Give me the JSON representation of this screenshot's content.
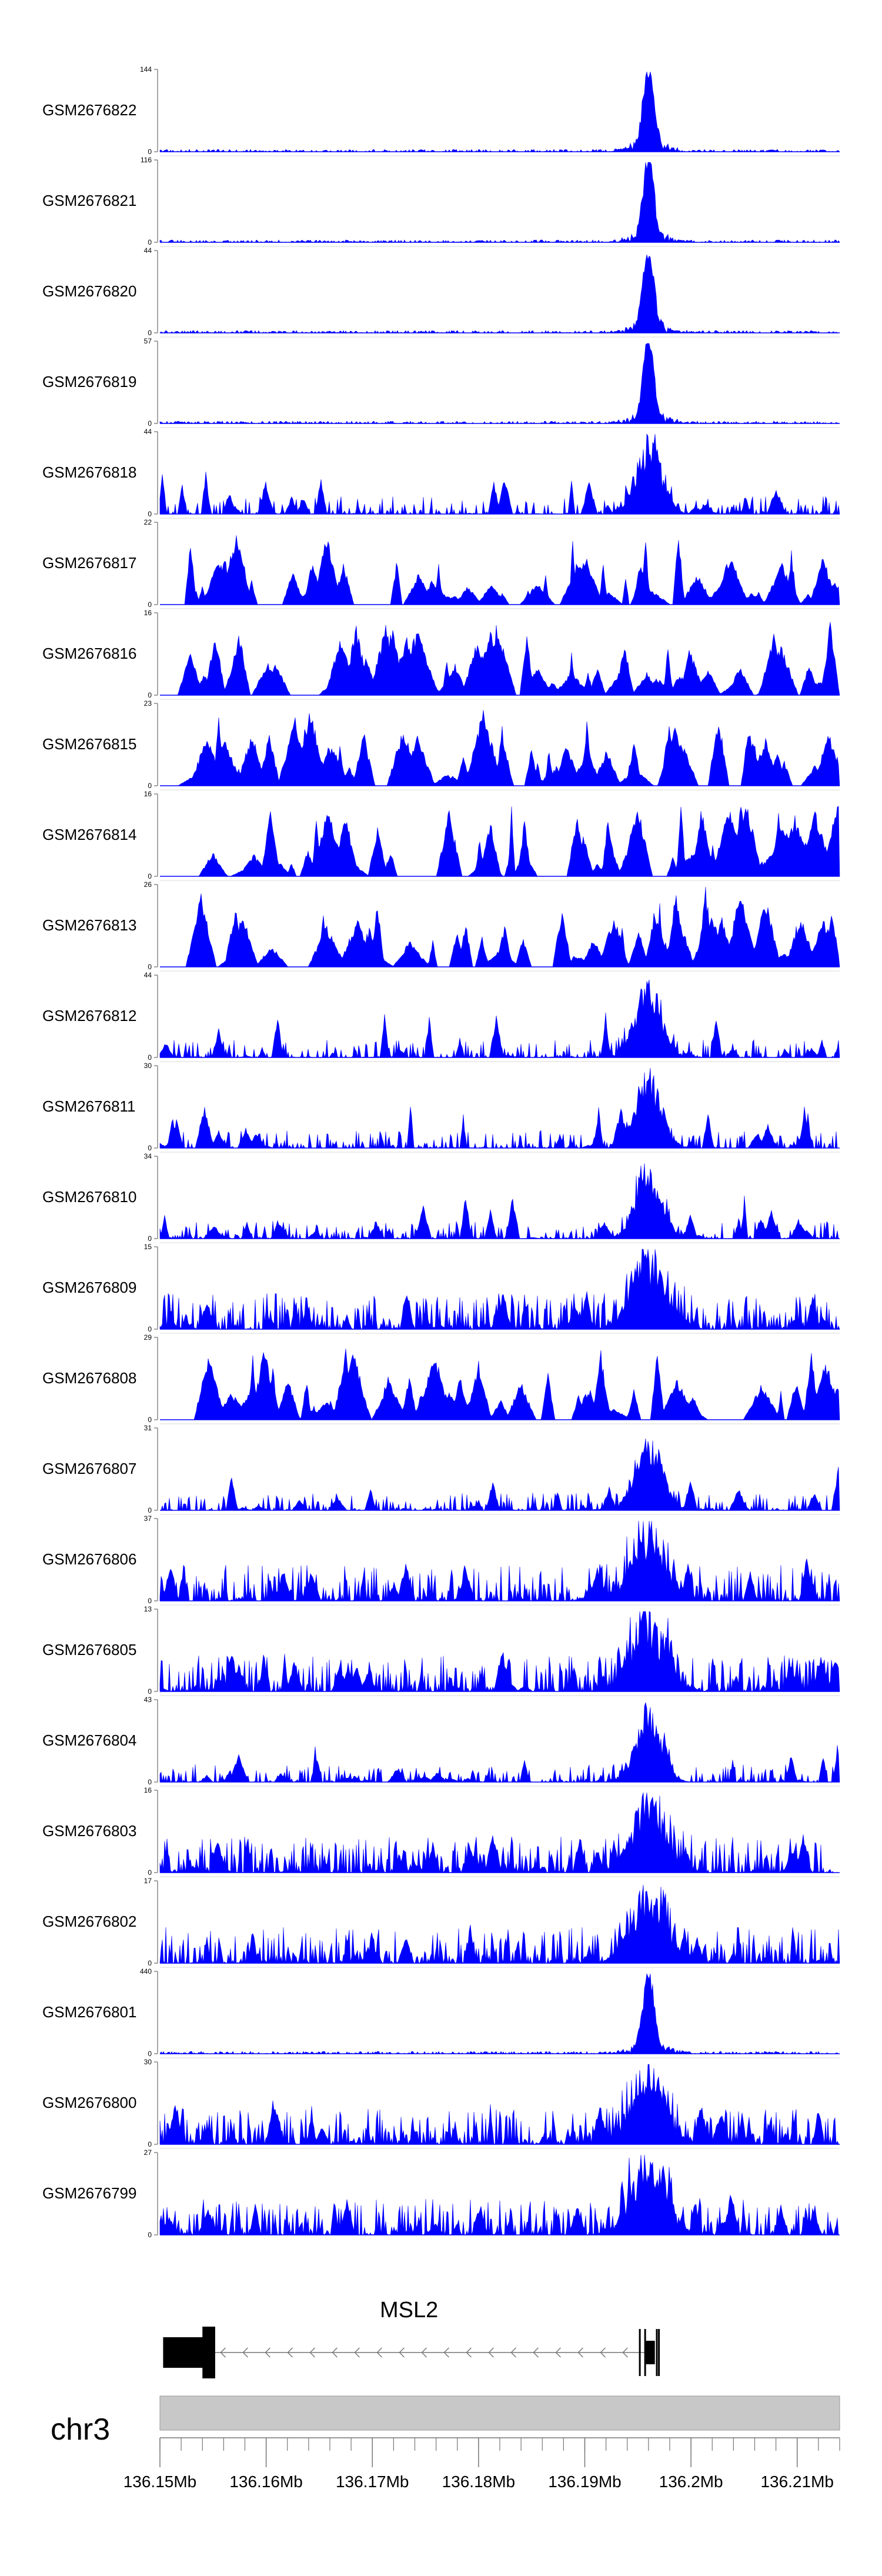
{
  "chart_data": {
    "type": "area",
    "region": {
      "chromosome": "chr3",
      "start_mb": 136.15,
      "end_mb": 136.214
    },
    "series_color": "#0000ff",
    "tracks": [
      {
        "name": "GSM2676822",
        "ymax": 144,
        "ymin": 0,
        "profile": "peak"
      },
      {
        "name": "GSM2676821",
        "ymax": 116,
        "ymin": 0,
        "profile": "peak"
      },
      {
        "name": "GSM2676820",
        "ymax": 44,
        "ymin": 0,
        "profile": "peak"
      },
      {
        "name": "GSM2676819",
        "ymax": 57,
        "ymin": 0,
        "profile": "peak"
      },
      {
        "name": "GSM2676818",
        "ymax": 44,
        "ymin": 0,
        "profile": "mixed"
      },
      {
        "name": "GSM2676817",
        "ymax": 22,
        "ymin": 0,
        "profile": "sparse"
      },
      {
        "name": "GSM2676816",
        "ymax": 16,
        "ymin": 0,
        "profile": "sparse"
      },
      {
        "name": "GSM2676815",
        "ymax": 23,
        "ymin": 0,
        "profile": "sparse"
      },
      {
        "name": "GSM2676814",
        "ymax": 16,
        "ymin": 0,
        "profile": "sparse"
      },
      {
        "name": "GSM2676813",
        "ymax": 26,
        "ymin": 0,
        "profile": "sparse"
      },
      {
        "name": "GSM2676812",
        "ymax": 44,
        "ymin": 0,
        "profile": "mixed"
      },
      {
        "name": "GSM2676811",
        "ymax": 30,
        "ymin": 0,
        "profile": "mixed"
      },
      {
        "name": "GSM2676810",
        "ymax": 34,
        "ymin": 0,
        "profile": "mixed"
      },
      {
        "name": "GSM2676809",
        "ymax": 15,
        "ymin": 0,
        "profile": "dense"
      },
      {
        "name": "GSM2676808",
        "ymax": 29,
        "ymin": 0,
        "profile": "sparse"
      },
      {
        "name": "GSM2676807",
        "ymax": 31,
        "ymin": 0,
        "profile": "mixed"
      },
      {
        "name": "GSM2676806",
        "ymax": 37,
        "ymin": 0,
        "profile": "dense"
      },
      {
        "name": "GSM2676805",
        "ymax": 13,
        "ymin": 0,
        "profile": "dense"
      },
      {
        "name": "GSM2676804",
        "ymax": 43,
        "ymin": 0,
        "profile": "mixed"
      },
      {
        "name": "GSM2676803",
        "ymax": 16,
        "ymin": 0,
        "profile": "dense"
      },
      {
        "name": "GSM2676802",
        "ymax": 17,
        "ymin": 0,
        "profile": "dense"
      },
      {
        "name": "GSM2676801",
        "ymax": 440,
        "ymin": 0,
        "profile": "peak"
      },
      {
        "name": "GSM2676800",
        "ymax": 30,
        "ymin": 0,
        "profile": "dense"
      },
      {
        "name": "GSM2676799",
        "ymax": 27,
        "ymin": 0,
        "profile": "dense"
      }
    ],
    "gene": {
      "name": "MSL2",
      "strand": "-",
      "start_mb": 136.1503,
      "end_mb": 136.1966,
      "exons_mb": [
        [
          136.1503,
          136.1544
        ],
        [
          136.1951,
          136.1953
        ],
        [
          136.1957,
          136.1958
        ],
        [
          136.1962,
          136.1963
        ]
      ],
      "thick_mb": [
        [
          136.1503,
          136.1544
        ],
        [
          136.1957,
          136.1966
        ]
      ]
    },
    "chromosome_label": "chr3",
    "x_ticks": [
      "136.15Mb",
      "136.16Mb",
      "136.17Mb",
      "136.18Mb",
      "136.19Mb",
      "136.2Mb",
      "136.21Mb"
    ],
    "x_tick_values": [
      136.15,
      136.16,
      136.17,
      136.18,
      136.19,
      136.2,
      136.21
    ],
    "peak_center_mb": 136.196
  }
}
